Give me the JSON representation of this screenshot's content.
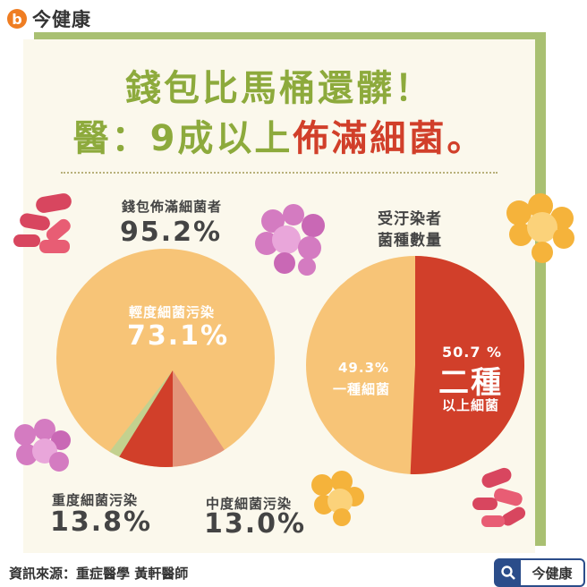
{
  "brand": {
    "logo_letter": "b",
    "name": "今健康"
  },
  "title": {
    "line1": "錢包比馬桶還髒！",
    "line2_prefix": "醫：9成以上",
    "line2_highlight": "佈滿細菌。"
  },
  "left_header": {
    "label": "錢包佈滿細菌者",
    "value": "95.2%"
  },
  "right_header": {
    "line1": "受汙染者",
    "line2": "菌種數量"
  },
  "left_chart": {
    "light": {
      "label": "輕度細菌污染",
      "value": "73.1%"
    },
    "heavy": {
      "label": "重度細菌污染",
      "value": "13.8%"
    },
    "medium": {
      "label": "中度細菌污染",
      "value": "13.0%"
    }
  },
  "right_chart": {
    "one": {
      "value": "49.3%",
      "label": "一種細菌"
    },
    "two": {
      "value": "50.7 %",
      "big_label": "二種",
      "label": "以上細菌"
    }
  },
  "footer": {
    "source": "資訊來源：重症醫學 黃軒醫師",
    "search_label": "今健康"
  },
  "colors": {
    "green": "#8daa3c",
    "red": "#d13f2a",
    "orange": "#f7c477",
    "salmon": "#e3957a",
    "light_green": "#c3d18f"
  },
  "chart_data": [
    {
      "type": "pie",
      "title": "錢包佈滿細菌者",
      "total": "95.2%",
      "categories": [
        "輕度細菌污染",
        "重度細菌污染",
        "中度細菌污染"
      ],
      "values": [
        73.1,
        13.8,
        13.0
      ]
    },
    {
      "type": "pie",
      "title": "受汙染者菌種數量",
      "categories": [
        "一種細菌",
        "二種以上細菌"
      ],
      "values": [
        49.3,
        50.7
      ]
    }
  ]
}
